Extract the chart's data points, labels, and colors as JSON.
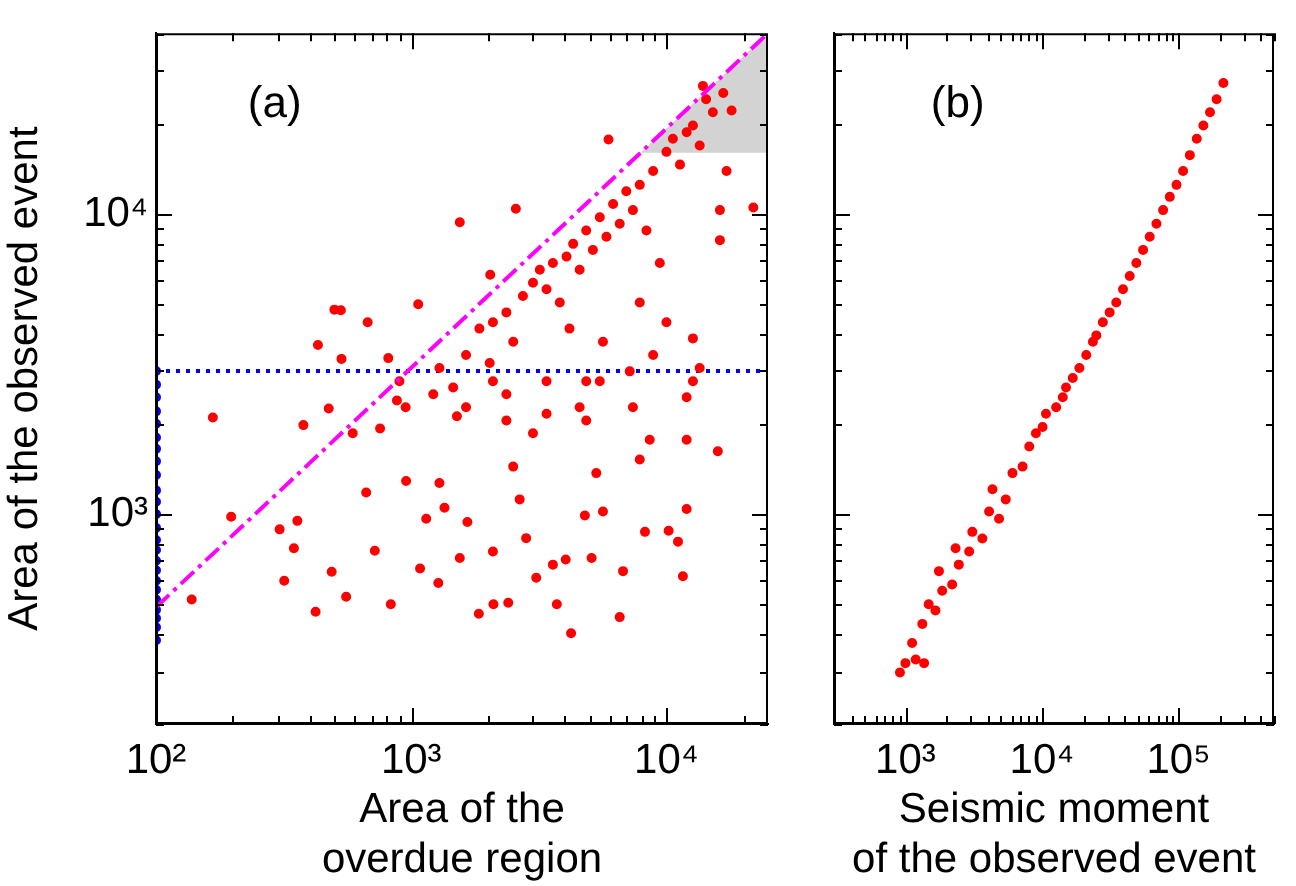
{
  "chart_data": [
    {
      "type": "scatter",
      "xlabel": "Area of the\noverdue region",
      "ylabel": "Area of the observed event",
      "log": "xy",
      "grid": false,
      "marker": "circle",
      "xlim": [
        100,
        25000
      ],
      "ylim": [
        200,
        40000
      ],
      "xticks": [
        {
          "value": 100,
          "label": "10²"
        },
        {
          "value": 200,
          "label": null
        },
        {
          "value": 300,
          "label": null
        },
        {
          "value": 400,
          "label": null
        },
        {
          "value": 500,
          "label": null
        },
        {
          "value": 600,
          "label": null
        },
        {
          "value": 700,
          "label": null
        },
        {
          "value": 800,
          "label": null
        },
        {
          "value": 900,
          "label": null
        },
        {
          "value": 1000,
          "label": "10³"
        },
        {
          "value": 2000,
          "label": null
        },
        {
          "value": 3000,
          "label": null
        },
        {
          "value": 4000,
          "label": null
        },
        {
          "value": 5000,
          "label": null
        },
        {
          "value": 6000,
          "label": null
        },
        {
          "value": 7000,
          "label": null
        },
        {
          "value": 8000,
          "label": null
        },
        {
          "value": 9000,
          "label": null
        },
        {
          "value": 10000,
          "label": "10⁴"
        },
        {
          "value": 20000,
          "label": null
        }
      ],
      "yticks": [
        {
          "value": 200,
          "label": null
        },
        {
          "value": 300,
          "label": null
        },
        {
          "value": 400,
          "label": null
        },
        {
          "value": 500,
          "label": null
        },
        {
          "value": 600,
          "label": null
        },
        {
          "value": 700,
          "label": null
        },
        {
          "value": 800,
          "label": null
        },
        {
          "value": 900,
          "label": null
        },
        {
          "value": 1000,
          "label": "10³"
        },
        {
          "value": 2000,
          "label": null
        },
        {
          "value": 3000,
          "label": null
        },
        {
          "value": 4000,
          "label": null
        },
        {
          "value": 5000,
          "label": null
        },
        {
          "value": 6000,
          "label": null
        },
        {
          "value": 7000,
          "label": null
        },
        {
          "value": 8000,
          "label": null
        },
        {
          "value": 9000,
          "label": null
        },
        {
          "value": 10000,
          "label": "10⁴"
        },
        {
          "value": 20000,
          "label": null
        },
        {
          "value": 30000,
          "label": null
        },
        {
          "value": 40000,
          "label": null
        }
      ],
      "annotations": [
        "(a)"
      ],
      "ref_lines": [
        {
          "axis": "y",
          "value": 3000,
          "color": "#0000ff",
          "line_style": "dotted"
        }
      ],
      "bands": [
        {
          "axis": "y",
          "from": 16000,
          "to": 40000,
          "color": "#d3d3d3"
        }
      ],
      "series": [
        {
          "color": "#ff0000",
          "x": [
            167,
            197,
            138,
            305,
            358,
            318,
            347,
            422,
            488,
            556,
            832,
            720,
            431,
            500,
            530,
            675,
            378,
            475,
            533,
            590,
            666,
            755,
            813,
            879,
            951,
            1065,
            955,
            1083,
            1145,
            1277,
            1290,
            1350,
            1510,
            1550,
            1660,
            1840,
            2030,
            2090,
            2100,
            2360,
            2400,
            2510,
            2660,
            2820,
            3000,
            3090,
            3390,
            3590,
            3720,
            4030,
            4230,
            4570,
            4790,
            5090,
            5310,
            5640,
            6560,
            6760,
            7860,
            8240,
            8600,
            10200,
            11100,
            11600,
            12000,
            15900,
            12000,
            12000,
            12700,
            13500,
            10000,
            8870,
            7180,
            7860,
            5640,
            4850,
            4170,
            1290,
            1640,
            1850,
            2090,
            2360,
            2510,
            2740,
            3000,
            3190,
            3390,
            3590,
            3820,
            4060,
            4310,
            4570,
            4850,
            5150,
            5480,
            5820,
            6180,
            6560,
            6960,
            7390,
            7860,
            8350,
            8870,
            9420,
            10000,
            10600,
            11300,
            12000,
            12700,
            13500,
            14300,
            15200,
            16700,
            13900,
            18000,
            17200,
            21900,
            16200,
            16200,
            5930,
            2570,
            1550,
            2040,
            1640,
            1220,
            2360,
            4850,
            7390,
            5480,
            3390,
            2090,
            1460,
            899,
            12700
          ],
          "values": [
            2100,
            980,
            520,
            890,
            950,
            600,
            770,
            473,
            643,
            531,
            501,
            755,
            3660,
            4800,
            4780,
            4360,
            1980,
            2250,
            3290,
            1860,
            1180,
            1930,
            3310,
            2390,
            2270,
            5000,
            1290,
            659,
            966,
            590,
            1270,
            1050,
            2120,
            714,
            942,
            466,
            3190,
            751,
            501,
            2510,
            507,
            1440,
            1120,
            832,
            1860,
            614,
            2160,
            679,
            501,
            706,
            401,
            2270,
            990,
            714,
            1370,
            1020,
            454,
            646,
            1520,
            873,
            1770,
            881,
            810,
            621,
            1040,
            1620,
            1770,
            2450,
            3850,
            3070,
            4360,
            3390,
            2990,
            5070,
            3750,
            2770,
            4150,
            3070,
            3390,
            4150,
            4360,
            4700,
            3750,
            5330,
            5900,
            6520,
            5610,
            6860,
            5070,
            7210,
            7950,
            6520,
            8810,
            7590,
            9750,
            8390,
            10800,
            9270,
            11900,
            10300,
            12500,
            8810,
            13900,
            6860,
            16100,
            17800,
            14600,
            18700,
            19700,
            16900,
            24100,
            21800,
            25300,
            26700,
            22100,
            13900,
            10500,
            10300,
            8180,
            17700,
            10400,
            9380,
            6270,
            2270,
            2510,
            2050,
            2050,
            2270,
            2770,
            2770,
            2770,
            2640,
            2770,
            2770
          ]
        },
        {
          "color": "#0000ff",
          "x": [
            100,
            100,
            100,
            100,
            100,
            100,
            100,
            100,
            100,
            100,
            100,
            100,
            100,
            100,
            100,
            100,
            100,
            100,
            100,
            100,
            100,
            100,
            100,
            100
          ],
          "values": [
            380,
            420,
            450,
            480,
            520,
            560,
            600,
            650,
            700,
            760,
            820,
            900,
            1000,
            1100,
            1200,
            1350,
            1500,
            1650,
            1800,
            2000,
            2200,
            2450,
            2700,
            3000
          ]
        },
        {
          "type": "line",
          "color": "#ff00ff",
          "line_style": "dashed",
          "marker": "none",
          "x": [
            100,
            25000
          ],
          "values": [
            490,
            40000
          ]
        }
      ]
    },
    {
      "type": "scatter",
      "xlabel": "Seismic moment\nof the observed event",
      "log": "xy",
      "grid": false,
      "marker": "circle",
      "tick_labels": "x",
      "xlim": [
        300,
        500000
      ],
      "ylim": [
        200,
        40000
      ],
      "xticks": [
        {
          "value": 300,
          "label": null
        },
        {
          "value": 400,
          "label": null
        },
        {
          "value": 500,
          "label": null
        },
        {
          "value": 600,
          "label": null
        },
        {
          "value": 700,
          "label": null
        },
        {
          "value": 800,
          "label": null
        },
        {
          "value": 900,
          "label": null
        },
        {
          "value": 1000,
          "label": "10³"
        },
        {
          "value": 2000,
          "label": null
        },
        {
          "value": 3000,
          "label": null
        },
        {
          "value": 4000,
          "label": null
        },
        {
          "value": 5000,
          "label": null
        },
        {
          "value": 6000,
          "label": null
        },
        {
          "value": 7000,
          "label": null
        },
        {
          "value": 8000,
          "label": null
        },
        {
          "value": 9000,
          "label": null
        },
        {
          "value": 10000,
          "label": "10⁴"
        },
        {
          "value": 20000,
          "label": null
        },
        {
          "value": 30000,
          "label": null
        },
        {
          "value": 40000,
          "label": null
        },
        {
          "value": 50000,
          "label": null
        },
        {
          "value": 60000,
          "label": null
        },
        {
          "value": 70000,
          "label": null
        },
        {
          "value": 80000,
          "label": null
        },
        {
          "value": 90000,
          "label": null
        },
        {
          "value": 100000,
          "label": "10⁵"
        },
        {
          "value": 200000,
          "label": null
        },
        {
          "value": 300000,
          "label": null
        },
        {
          "value": 400000,
          "label": null
        },
        {
          "value": 500000,
          "label": null
        }
      ],
      "yticks": [
        {
          "value": 200,
          "label": null
        },
        {
          "value": 300,
          "label": null
        },
        {
          "value": 400,
          "label": null
        },
        {
          "value": 500,
          "label": null
        },
        {
          "value": 600,
          "label": null
        },
        {
          "value": 700,
          "label": null
        },
        {
          "value": 800,
          "label": null
        },
        {
          "value": 900,
          "label": null
        },
        {
          "value": 1000,
          "label": null
        },
        {
          "value": 2000,
          "label": null
        },
        {
          "value": 3000,
          "label": null
        },
        {
          "value": 4000,
          "label": null
        },
        {
          "value": 5000,
          "label": null
        },
        {
          "value": 6000,
          "label": null
        },
        {
          "value": 7000,
          "label": null
        },
        {
          "value": 8000,
          "label": null
        },
        {
          "value": 9000,
          "label": null
        },
        {
          "value": 10000,
          "label": null
        },
        {
          "value": 20000,
          "label": null
        },
        {
          "value": 30000,
          "label": null
        },
        {
          "value": 40000,
          "label": null
        }
      ],
      "annotations": [
        "(b)"
      ],
      "series": [
        {
          "color": "#ff0000",
          "x": [
            912,
            1000,
            1120,
            1330,
            1190,
            1370,
            1480,
            1660,
            1860,
            1760,
            2200,
            2460,
            2330,
            2930,
            3090,
            3660,
            4100,
            4340,
            4850,
            5430,
            6080,
            7210,
            8070,
            9030,
            10100,
            10700,
            12700,
            14200,
            15000,
            16800,
            18800,
            21100,
            23600,
            25000,
            27900,
            31300,
            35000,
            39200,
            43900,
            49100,
            55000,
            61500,
            68900,
            77100,
            86300,
            96600,
            108000,
            121000,
            136000,
            152000,
            170000,
            190000,
            213000
          ],
          "values": [
            297,
            319,
            372,
            431,
            328,
            319,
            501,
            478,
            556,
            646,
            583,
            679,
            770,
            751,
            873,
            830,
            1020,
            1210,
            966,
            1120,
            1370,
            1440,
            1680,
            1860,
            1950,
            2160,
            2270,
            2450,
            2640,
            2840,
            3070,
            3390,
            3750,
            3940,
            4360,
            4700,
            5070,
            5610,
            6210,
            6860,
            7590,
            8390,
            9270,
            10300,
            11400,
            12500,
            13900,
            15700,
            17800,
            19700,
            21800,
            24100,
            27300
          ]
        }
      ]
    }
  ]
}
